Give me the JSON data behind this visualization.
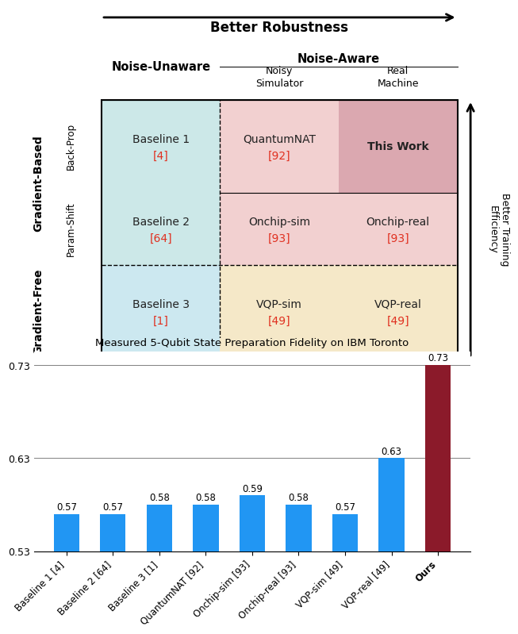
{
  "top_title": "Better Robustness",
  "right_title": "Better Training\nEfficiency",
  "cells": [
    {
      "row": 0,
      "col": 0,
      "label": "Baseline 1",
      "ref": "[4]",
      "bg": "#cce8e8",
      "bold": false
    },
    {
      "row": 0,
      "col": 1,
      "label": "QuantumNAT",
      "ref": "[92]",
      "bg": "#f2d0d0",
      "bold": false
    },
    {
      "row": 0,
      "col": 2,
      "label": "This Work",
      "ref": "",
      "bg": "#dba8b0",
      "bold": true
    },
    {
      "row": 1,
      "col": 0,
      "label": "Baseline 2",
      "ref": "[64]",
      "bg": "#cce8e8",
      "bold": false
    },
    {
      "row": 1,
      "col": 1,
      "label": "Onchip-sim",
      "ref": "[93]",
      "bg": "#f2d0d0",
      "bold": false
    },
    {
      "row": 1,
      "col": 2,
      "label": "Onchip-real",
      "ref": "[93]",
      "bg": "#f2d0d0",
      "bold": false
    },
    {
      "row": 2,
      "col": 0,
      "label": "Baseline 3",
      "ref": "[1]",
      "bg": "#cce8f0",
      "bold": false
    },
    {
      "row": 2,
      "col": 1,
      "label": "VQP-sim",
      "ref": "[49]",
      "bg": "#f5e8c8",
      "bold": false
    },
    {
      "row": 2,
      "col": 2,
      "label": "VQP-real",
      "ref": "[49]",
      "bg": "#f5e8c8",
      "bold": false
    }
  ],
  "bar_labels": [
    "Baseline 1 [4]",
    "Baseline 2 [64]",
    "Baseline 3 [1]",
    "QuantumNAT [92]",
    "Onchip-sim [93]",
    "Onchip-real [93]",
    "VQP-sim [49]",
    "VQP-real [49]",
    "Ours"
  ],
  "bar_values": [
    0.57,
    0.57,
    0.58,
    0.58,
    0.59,
    0.58,
    0.57,
    0.63,
    0.73
  ],
  "bar_colors": [
    "#2196F3",
    "#2196F3",
    "#2196F3",
    "#2196F3",
    "#2196F3",
    "#2196F3",
    "#2196F3",
    "#2196F3",
    "#8B1A2A"
  ],
  "bar_chart_title": "Measured 5-Qubit State Preparation Fidelity on IBM Toronto",
  "ylim": [
    0.53,
    0.745
  ],
  "yticks": [
    0.53,
    0.63,
    0.73
  ],
  "ref_color": "#e03020",
  "cell_text_color": "#222222",
  "bar_baseline": 0.53
}
